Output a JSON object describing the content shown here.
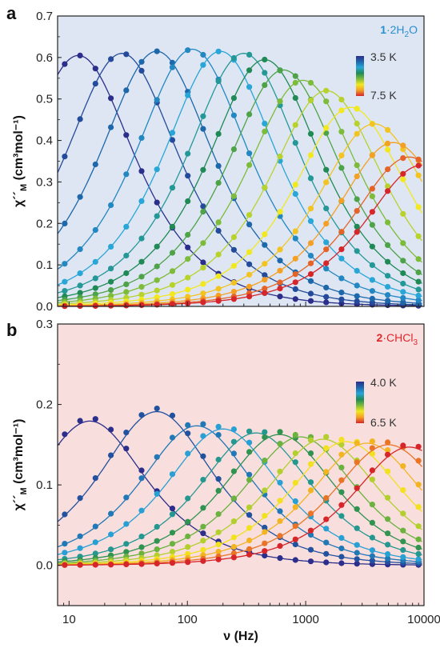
{
  "colors": {
    "panel_a_bg": "#dde6f2",
    "panel_b_bg": "#f8dedd",
    "compound_a": "#2a8fcf",
    "compound_b": "#e0262a",
    "temperature_scale": [
      "#2b2e8a",
      "#1d67ab",
      "#29a6d8",
      "#1f8a55",
      "#7dbb3a",
      "#f2e81e",
      "#f4a024",
      "#d6262a"
    ]
  },
  "chart_data": [
    {
      "type": "scatter",
      "panel": "a",
      "compound": {
        "bold": "1",
        "text": "·2H",
        "sub": "2",
        "tail": "O"
      },
      "ylabel": {
        "main": "χ´´",
        "sub": "M",
        "unit": "(cm³mol⁻¹)"
      },
      "xlabel": "",
      "xscale": "log",
      "xlim": [
        8,
        10000
      ],
      "ylim": [
        0,
        0.7
      ],
      "yticks": [
        "0.0",
        "0.1",
        "0.2",
        "0.3",
        "0.4",
        "0.5",
        "0.6",
        "0.7"
      ],
      "xticks": [],
      "legend": {
        "title_top": "3.5 K",
        "title_bottom": "7.5 K",
        "placement": "top-right"
      },
      "series": [
        {
          "peak_hz": 12,
          "peak_chi": 0.605
        },
        {
          "peak_hz": 28,
          "peak_chi": 0.61
        },
        {
          "peak_hz": 55,
          "peak_chi": 0.615
        },
        {
          "peak_hz": 110,
          "peak_chi": 0.62
        },
        {
          "peak_hz": 190,
          "peak_chi": 0.615
        },
        {
          "peak_hz": 300,
          "peak_chi": 0.61
        },
        {
          "peak_hz": 450,
          "peak_chi": 0.595
        },
        {
          "peak_hz": 650,
          "peak_chi": 0.57
        },
        {
          "peak_hz": 950,
          "peak_chi": 0.545
        },
        {
          "peak_hz": 1500,
          "peak_chi": 0.52
        },
        {
          "peak_hz": 2400,
          "peak_chi": 0.48
        },
        {
          "peak_hz": 3800,
          "peak_chi": 0.44
        },
        {
          "peak_hz": 5500,
          "peak_chi": 0.395
        },
        {
          "peak_hz": 7500,
          "peak_chi": 0.36
        },
        {
          "peak_hz": 9500,
          "peak_chi": 0.34
        }
      ]
    },
    {
      "type": "scatter",
      "panel": "b",
      "compound": {
        "bold": "2",
        "text": "·CHCl",
        "sub": "3",
        "tail": ""
      },
      "ylabel": {
        "main": "χ´´",
        "sub": "M",
        "unit": "(cm³mol⁻¹)"
      },
      "xlabel": "ν (Hz)",
      "xscale": "log",
      "xlim": [
        8,
        10000
      ],
      "ylim": [
        -0.05,
        0.3
      ],
      "yticks": [
        "0.0",
        "0.1",
        "0.2",
        "0.3"
      ],
      "xticks": [
        "10",
        "100",
        "1000",
        "10000"
      ],
      "legend": {
        "title_top": "4.0 K",
        "title_bottom": "6.5 K",
        "placement": "top-right"
      },
      "series": [
        {
          "peak_hz": 15,
          "peak_chi": 0.183
        },
        {
          "peak_hz": 55,
          "peak_chi": 0.195
        },
        {
          "peak_hz": 120,
          "peak_chi": 0.177
        },
        {
          "peak_hz": 200,
          "peak_chi": 0.173
        },
        {
          "peak_hz": 380,
          "peak_chi": 0.168
        },
        {
          "peak_hz": 600,
          "peak_chi": 0.166
        },
        {
          "peak_hz": 900,
          "peak_chi": 0.163
        },
        {
          "peak_hz": 1400,
          "peak_chi": 0.16
        },
        {
          "peak_hz": 2200,
          "peak_chi": 0.157
        },
        {
          "peak_hz": 3300,
          "peak_chi": 0.155
        },
        {
          "peak_hz": 5000,
          "peak_chi": 0.153
        },
        {
          "peak_hz": 7500,
          "peak_chi": 0.15
        }
      ]
    }
  ]
}
